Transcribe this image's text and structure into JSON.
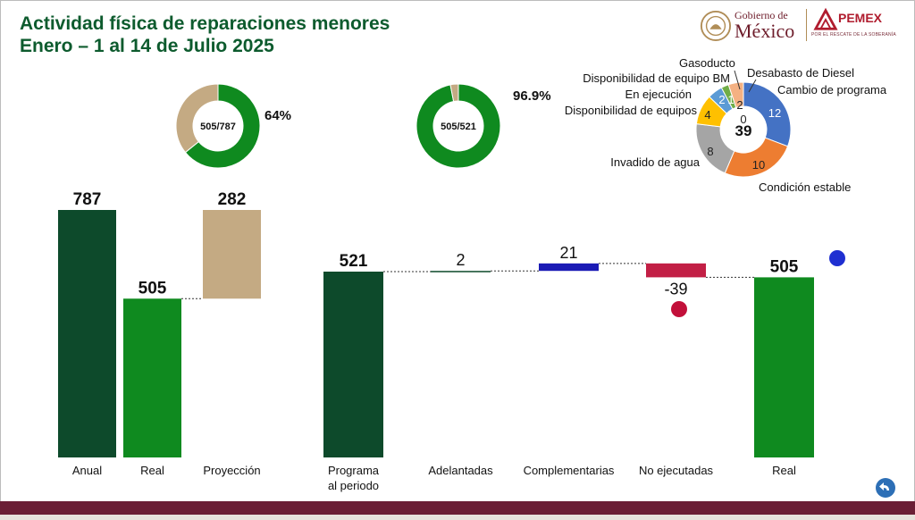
{
  "header": {
    "title_line1": "Actividad física de reparaciones menores",
    "title_line2": "Enero – 1 al 14 de Julio 2025"
  },
  "logos": {
    "gobierno_l1": "Gobierno de",
    "gobierno_l2": "México",
    "pemex": "PEMEX",
    "pemex_tag": "POR EL RESCATE DE LA SOBERANÍA"
  },
  "colors": {
    "title": "#0d5b2e",
    "dark_green": "#0d4a2b",
    "green": "#0f8a1f",
    "tan": "#c4aa83",
    "blue_bar": "#1b1bb5",
    "red_bar": "#c21f45",
    "brand_wine": "#6b1e35"
  },
  "chart_data": [
    {
      "type": "pie",
      "variant": "donut",
      "center_label": "505/787",
      "percent_label": "64%",
      "slices": [
        {
          "value": 505,
          "color": "#0f8a1f"
        },
        {
          "value": 282,
          "color": "#c4aa83"
        }
      ]
    },
    {
      "type": "pie",
      "variant": "donut",
      "center_label": "505/521",
      "percent_label": "96.9%",
      "slices": [
        {
          "value": 505,
          "color": "#0f8a1f"
        },
        {
          "value": 16,
          "color": "#c4aa83"
        }
      ]
    },
    {
      "type": "pie",
      "variant": "donut",
      "center_label": "39",
      "slices": [
        {
          "label": "Condición estable",
          "value": 12,
          "color": "#4472c4"
        },
        {
          "label": "Invadido de agua",
          "value": 10,
          "color": "#ed7d31"
        },
        {
          "label": "Disponibilidad de equipos",
          "value": 8,
          "color": "#a5a5a5"
        },
        {
          "label": "En ejecución",
          "value": 4,
          "color": "#ffc000"
        },
        {
          "label": "Disponibilidad de equipo BM",
          "value": 2,
          "color": "#5b9bd5"
        },
        {
          "label": "Gasoducto",
          "value": 1,
          "color": "#70ad47"
        },
        {
          "label": "Desabasto de Diesel",
          "value": 2,
          "color": "#f4b183"
        },
        {
          "label": "Cambio de programa",
          "value": 0,
          "color": "#9e480e"
        }
      ]
    },
    {
      "type": "bar",
      "categories": [
        "Anual",
        "Real",
        "Proyección"
      ],
      "values": [
        787,
        505,
        282
      ],
      "value_labels": [
        "787",
        "505",
        "282"
      ],
      "colors": [
        "#0d4a2b",
        "#0f8a1f",
        "#c4aa83"
      ],
      "stacked_offsets": [
        0,
        0,
        505
      ]
    },
    {
      "type": "bar",
      "variant": "waterfall",
      "categories": [
        "Programa\nal periodo",
        "Adelantadas",
        "Complementarias",
        "No ejecutadas",
        "Real"
      ],
      "values": [
        521,
        2,
        21,
        -39,
        505
      ],
      "value_labels": [
        "521",
        "2",
        "21",
        "-39",
        "505"
      ],
      "colors": [
        "#0d4a2b",
        "#0d4a2b",
        "#1b1bb5",
        "#c21f45",
        "#0f8a1f"
      ]
    }
  ]
}
